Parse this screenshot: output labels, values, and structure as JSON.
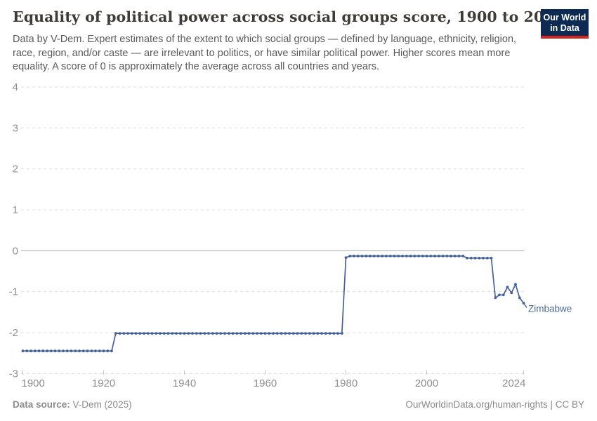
{
  "header": {
    "title": "Equality of political power across social groups score, 1900 to 2024",
    "subtitle": "Data by V-Dem. Expert estimates of the extent to which social groups — defined by language, ethnicity, religion, race, region, and/or caste — are irrelevant to politics, or have similar political power. Higher scores mean more equality. A score of 0 is approximately the average across all countries and years.",
    "logo": {
      "line1": "Our World",
      "line2": "in Data",
      "bg_color": "#0d2b52",
      "accent_color": "#cf2420",
      "text_color": "#ffffff"
    }
  },
  "footer": {
    "source_label": "Data source:",
    "source_value": "V-Dem (2025)",
    "credit": "OurWorldinData.org/human-rights | CC BY"
  },
  "chart_data": {
    "type": "line",
    "title": "Equality of political power across social groups score, 1900 to 2024",
    "xlabel": "",
    "ylabel": "",
    "xlim": [
      1900,
      2024
    ],
    "ylim": [
      -3,
      4
    ],
    "x_ticks": [
      1900,
      1920,
      1940,
      1960,
      1980,
      2000,
      2024
    ],
    "y_ticks": [
      4,
      3,
      2,
      1,
      0,
      -1,
      -2,
      -3
    ],
    "grid": "horizontal dashed gridlines; solid line at zero",
    "legend_position": "end-of-line entity label",
    "colors": {
      "grid": "#dcdcdc",
      "zero_line": "#a8a8a8",
      "axis_text": "#8f8f8f",
      "tick_mark": "#c9c9c9"
    },
    "series": [
      {
        "name": "Zimbabwe",
        "color": "#44619d",
        "label_color": "#4c6a9c",
        "segments": [
          {
            "from": 1900,
            "to": 1922,
            "value": -2.45
          },
          {
            "from": 1923,
            "to": 1979,
            "value": -2.02
          },
          {
            "from": 1980,
            "to": 1980,
            "value": -0.17
          },
          {
            "from": 1981,
            "to": 2009,
            "value": -0.13
          },
          {
            "from": 2010,
            "to": 2016,
            "value": -0.18
          },
          {
            "from": 2017,
            "to": 2017,
            "value": -1.15
          },
          {
            "from": 2018,
            "to": 2018,
            "value": -1.08
          },
          {
            "from": 2019,
            "to": 2019,
            "value": -1.08
          },
          {
            "from": 2020,
            "to": 2020,
            "value": -0.89
          },
          {
            "from": 2021,
            "to": 2021,
            "value": -1.03
          },
          {
            "from": 2022,
            "to": 2022,
            "value": -0.82
          },
          {
            "from": 2023,
            "to": 2023,
            "value": -1.15
          },
          {
            "from": 2024,
            "to": 2024,
            "value": -1.28
          }
        ]
      }
    ]
  }
}
